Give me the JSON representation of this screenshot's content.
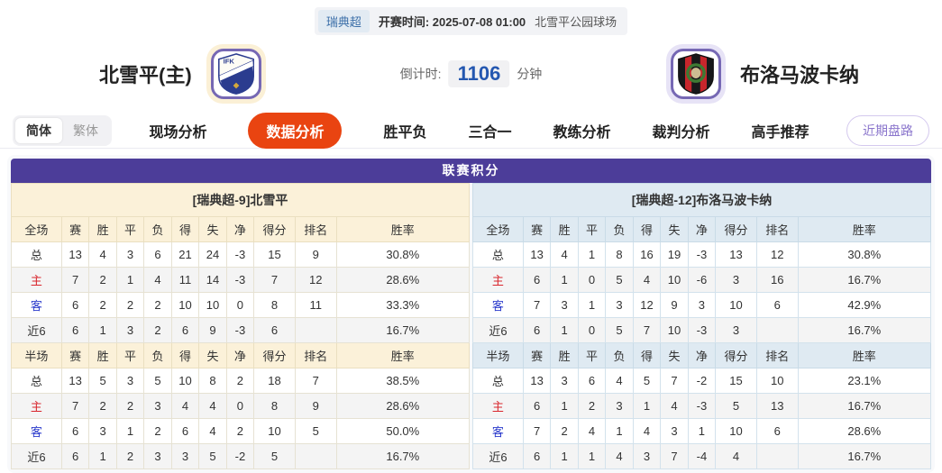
{
  "top_bar": {
    "league": "瑞典超",
    "kickoff_label": "开赛时间:",
    "kickoff_time": "2025-07-08 01:00",
    "venue": "北雪平公园球场"
  },
  "header": {
    "home_team": "北雪平(主)",
    "home_logo_text": "IFK",
    "away_team": "布洛马波卡纳",
    "countdown_label": "倒计时:",
    "countdown_value": "1106",
    "countdown_unit": "分钟"
  },
  "nav": {
    "lang_simplified": "简体",
    "lang_traditional": "繁体",
    "tabs": [
      {
        "label": "现场分析",
        "active": false
      },
      {
        "label": "数据分析",
        "active": true
      },
      {
        "label": "胜平负",
        "active": false
      },
      {
        "label": "三合一",
        "active": false
      },
      {
        "label": "教练分析",
        "active": false
      },
      {
        "label": "裁判分析",
        "active": false
      },
      {
        "label": "高手推荐",
        "active": false
      }
    ],
    "recent_trends_button": "近期盘路"
  },
  "table": {
    "title": "联赛积分",
    "columns_full": [
      "全场",
      "赛",
      "胜",
      "平",
      "负",
      "得",
      "失",
      "净",
      "得分",
      "排名",
      "胜率"
    ],
    "columns_half": [
      "半场",
      "赛",
      "胜",
      "平",
      "负",
      "得",
      "失",
      "净",
      "得分",
      "排名",
      "胜率"
    ],
    "home": {
      "team_header": "[瑞典超-9]北雪平",
      "full_rows": [
        {
          "label": "总",
          "values": [
            "13",
            "4",
            "3",
            "6",
            "21",
            "24",
            "-3",
            "15",
            "9",
            "30.8%"
          ]
        },
        {
          "label": "主",
          "values": [
            "7",
            "2",
            "1",
            "4",
            "11",
            "14",
            "-3",
            "7",
            "12",
            "28.6%"
          ]
        },
        {
          "label": "客",
          "values": [
            "6",
            "2",
            "2",
            "2",
            "10",
            "10",
            "0",
            "8",
            "11",
            "33.3%"
          ]
        },
        {
          "label": "近6",
          "values": [
            "6",
            "1",
            "3",
            "2",
            "6",
            "9",
            "-3",
            "6",
            "",
            "16.7%"
          ]
        }
      ],
      "half_rows": [
        {
          "label": "总",
          "values": [
            "13",
            "5",
            "3",
            "5",
            "10",
            "8",
            "2",
            "18",
            "7",
            "38.5%"
          ]
        },
        {
          "label": "主",
          "values": [
            "7",
            "2",
            "2",
            "3",
            "4",
            "4",
            "0",
            "8",
            "9",
            "28.6%"
          ]
        },
        {
          "label": "客",
          "values": [
            "6",
            "3",
            "1",
            "2",
            "6",
            "4",
            "2",
            "10",
            "5",
            "50.0%"
          ]
        },
        {
          "label": "近6",
          "values": [
            "6",
            "1",
            "2",
            "3",
            "3",
            "5",
            "-2",
            "5",
            "",
            "16.7%"
          ]
        }
      ]
    },
    "away": {
      "team_header": "[瑞典超-12]布洛马波卡纳",
      "full_rows": [
        {
          "label": "总",
          "values": [
            "13",
            "4",
            "1",
            "8",
            "16",
            "19",
            "-3",
            "13",
            "12",
            "30.8%"
          ]
        },
        {
          "label": "主",
          "values": [
            "6",
            "1",
            "0",
            "5",
            "4",
            "10",
            "-6",
            "3",
            "16",
            "16.7%"
          ]
        },
        {
          "label": "客",
          "values": [
            "7",
            "3",
            "1",
            "3",
            "12",
            "9",
            "3",
            "10",
            "6",
            "42.9%"
          ]
        },
        {
          "label": "近6",
          "values": [
            "6",
            "1",
            "0",
            "5",
            "7",
            "10",
            "-3",
            "3",
            "",
            "16.7%"
          ]
        }
      ],
      "half_rows": [
        {
          "label": "总",
          "values": [
            "13",
            "3",
            "6",
            "4",
            "5",
            "7",
            "-2",
            "15",
            "10",
            "23.1%"
          ]
        },
        {
          "label": "主",
          "values": [
            "6",
            "1",
            "2",
            "3",
            "1",
            "4",
            "-3",
            "5",
            "13",
            "16.7%"
          ]
        },
        {
          "label": "客",
          "values": [
            "7",
            "2",
            "4",
            "1",
            "4",
            "3",
            "1",
            "10",
            "6",
            "28.6%"
          ]
        },
        {
          "label": "近6",
          "values": [
            "6",
            "1",
            "1",
            "4",
            "3",
            "7",
            "-4",
            "4",
            "",
            "16.7%"
          ]
        }
      ]
    }
  },
  "colors": {
    "accent_purple": "#4c3d99",
    "active_tab_red": "#e94411",
    "home_header_bg": "#fbf1d9",
    "away_header_bg": "#dfeaf2",
    "home_row_label": "#d9262d",
    "away_row_label": "#2b3bcc",
    "countdown_blue": "#2457b0"
  }
}
